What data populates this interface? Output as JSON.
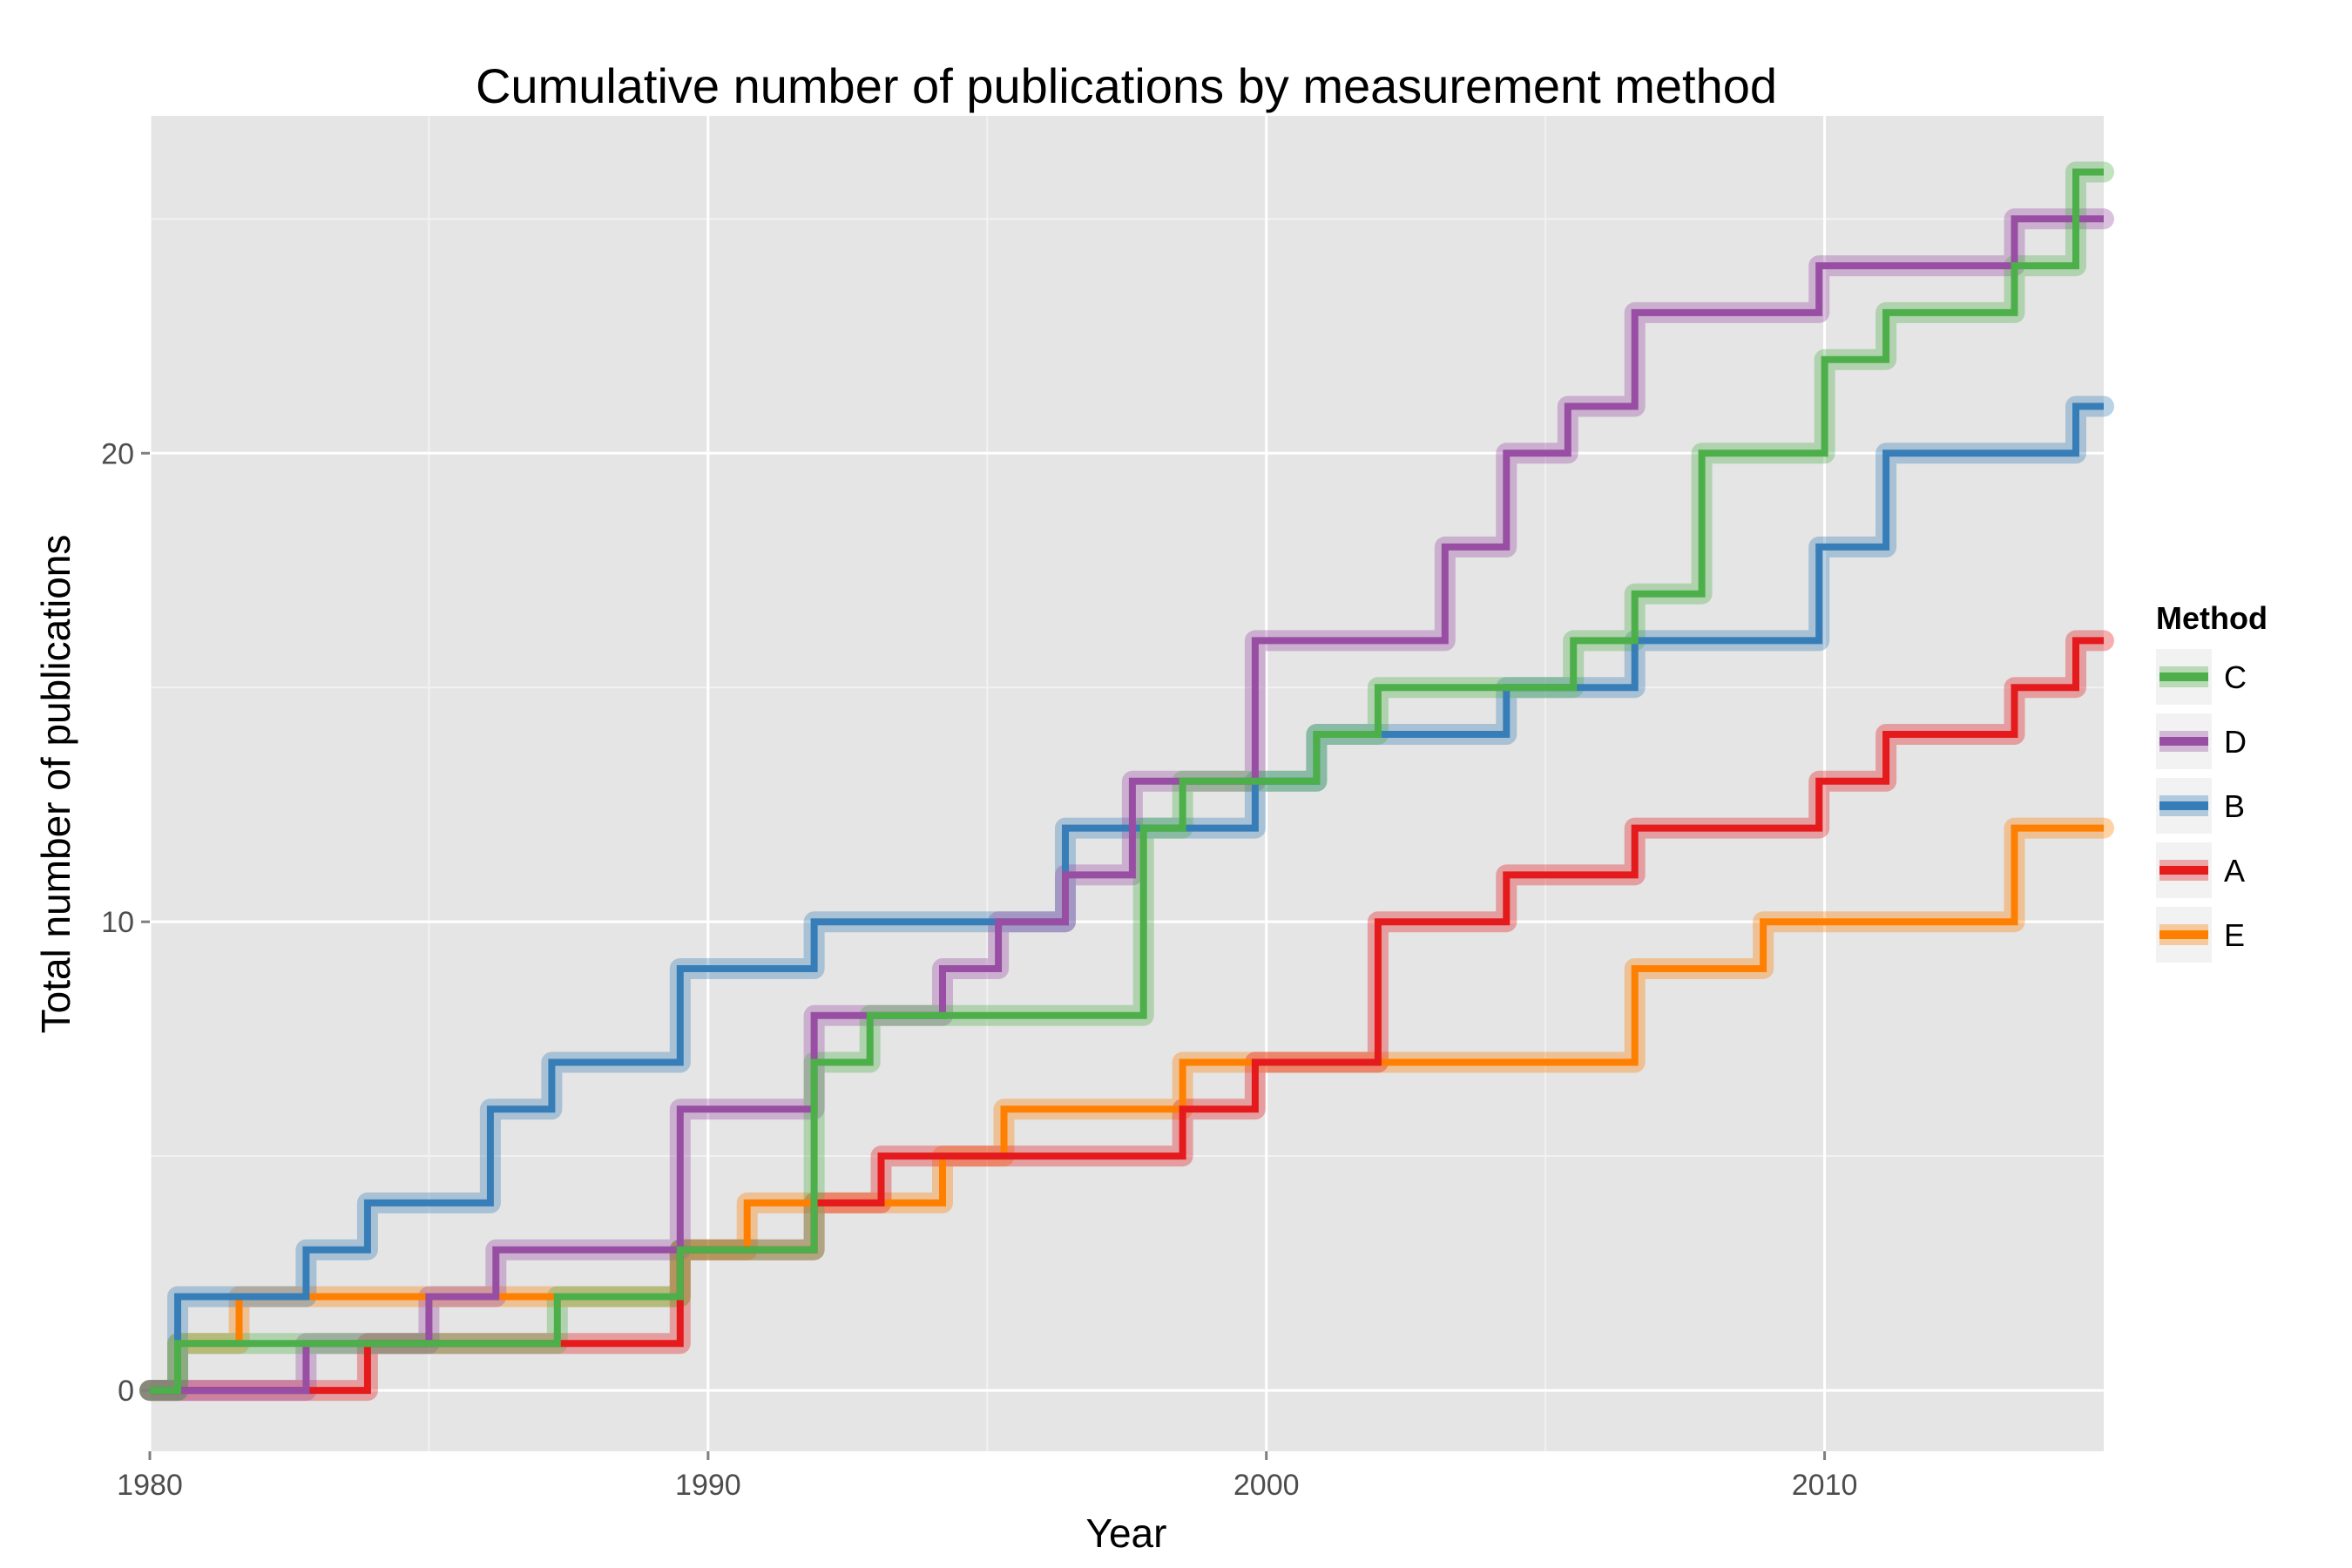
{
  "chart_data": {
    "type": "line",
    "step": true,
    "title": "Cumulative number of publications by measurement method",
    "xlabel": "Year",
    "ylabel": "Total number of publications",
    "xlim": [
      1980,
      2015
    ],
    "ylim": [
      -1.3,
      27.2
    ],
    "x_ticks": [
      1980,
      1990,
      2000,
      2010
    ],
    "y_ticks": [
      0,
      10,
      20
    ],
    "grid": true,
    "legend": {
      "title": "Method",
      "placement": "right"
    },
    "series": [
      {
        "name": "C",
        "color": "#4daf4a",
        "points": [
          [
            1980,
            0
          ],
          [
            1980.5,
            1
          ],
          [
            1982.8,
            1
          ],
          [
            1984.2,
            1
          ],
          [
            1987.3,
            2
          ],
          [
            1989.5,
            3
          ],
          [
            1991.9,
            4
          ],
          [
            1991.9,
            7
          ],
          [
            1992.9,
            8
          ],
          [
            1997.8,
            12
          ],
          [
            1998.5,
            13
          ],
          [
            2000.9,
            14
          ],
          [
            2002,
            15
          ],
          [
            2005.5,
            16
          ],
          [
            2006.6,
            17
          ],
          [
            2007.8,
            20
          ],
          [
            2010,
            22
          ],
          [
            2011.1,
            23
          ],
          [
            2013.4,
            24
          ],
          [
            2014.5,
            26
          ],
          [
            2015,
            26
          ]
        ]
      },
      {
        "name": "D",
        "color": "#984ea3",
        "points": [
          [
            1980,
            0
          ],
          [
            1982.8,
            1
          ],
          [
            1985,
            2
          ],
          [
            1986.2,
            3
          ],
          [
            1989.5,
            6
          ],
          [
            1991.9,
            8
          ],
          [
            1994.2,
            9
          ],
          [
            1995.2,
            10
          ],
          [
            1996.4,
            11
          ],
          [
            1997.6,
            13
          ],
          [
            1999.8,
            16
          ],
          [
            2003.2,
            18
          ],
          [
            2004.3,
            20
          ],
          [
            2005.4,
            21
          ],
          [
            2006.6,
            23
          ],
          [
            2009.9,
            24
          ],
          [
            2013.4,
            25
          ],
          [
            2015,
            25
          ]
        ]
      },
      {
        "name": "B",
        "color": "#377eb8",
        "points": [
          [
            1980,
            0
          ],
          [
            1980.5,
            2
          ],
          [
            1982.8,
            3
          ],
          [
            1983.9,
            4
          ],
          [
            1986.1,
            6
          ],
          [
            1987.2,
            7
          ],
          [
            1989.5,
            9
          ],
          [
            1991.9,
            10
          ],
          [
            1996.4,
            12
          ],
          [
            1999.8,
            13
          ],
          [
            2000.9,
            14
          ],
          [
            2004.3,
            15
          ],
          [
            2006.6,
            16
          ],
          [
            2009.9,
            18
          ],
          [
            2011.1,
            20
          ],
          [
            2014.5,
            21
          ],
          [
            2015,
            21
          ]
        ]
      },
      {
        "name": "A",
        "color": "#e41a1c",
        "points": [
          [
            1980,
            0
          ],
          [
            1983.9,
            1
          ],
          [
            1989.5,
            3
          ],
          [
            1991.9,
            4
          ],
          [
            1993.1,
            5
          ],
          [
            1998.5,
            6
          ],
          [
            1999.8,
            7
          ],
          [
            2002,
            10
          ],
          [
            2004.3,
            11
          ],
          [
            2006.6,
            12
          ],
          [
            2009.9,
            13
          ],
          [
            2011.1,
            14
          ],
          [
            2013.4,
            15
          ],
          [
            2014.5,
            16
          ],
          [
            2015,
            16
          ]
        ]
      },
      {
        "name": "E",
        "color": "#ff7f00",
        "points": [
          [
            1980,
            0
          ],
          [
            1980.5,
            1
          ],
          [
            1981.6,
            2
          ],
          [
            1989.5,
            3
          ],
          [
            1990.7,
            4
          ],
          [
            1994.2,
            5
          ],
          [
            1995.3,
            6
          ],
          [
            1998.5,
            7
          ],
          [
            2006.6,
            9
          ],
          [
            2008.9,
            10
          ],
          [
            2013.4,
            12
          ],
          [
            2015,
            12
          ]
        ]
      }
    ]
  }
}
